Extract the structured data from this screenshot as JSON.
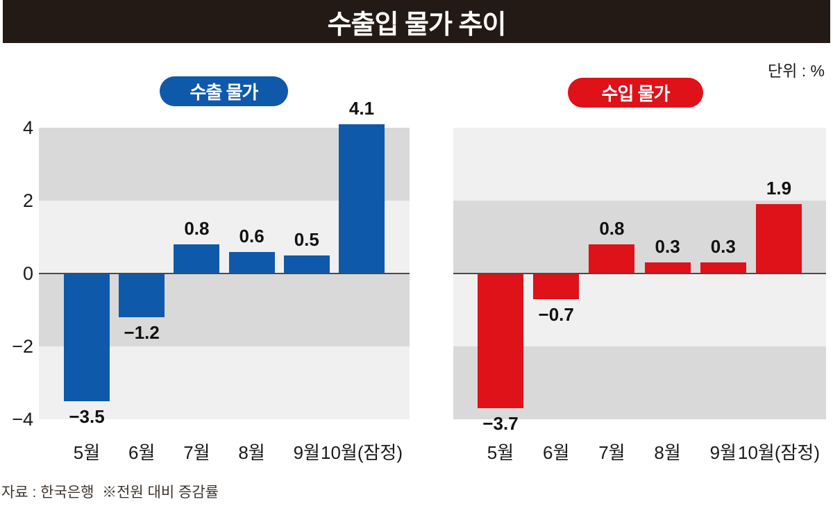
{
  "header": {
    "title": "수출입 물가 추이",
    "unit_label": "단위 : %"
  },
  "footer": {
    "source": "자료 : 한국은행  ※전원 대비 증감률"
  },
  "colors": {
    "title_bar_bg": "#241a15",
    "export_accent": "#0f59aa",
    "import_accent": "#df1119",
    "band_dark": "#d9d9d9",
    "band_light": "#f0f0f0",
    "zero_line": "#4a4a4a",
    "label_text": "#111111"
  },
  "chart_data": [
    {
      "type": "bar",
      "title": "수출 물가",
      "categories": [
        "5월",
        "6월",
        "7월",
        "8월",
        "9월",
        "10월(잠정)"
      ],
      "values": [
        -3.5,
        -1.2,
        0.8,
        0.6,
        0.5,
        4.1
      ],
      "bar_color": "#0f59aa",
      "ylim": [
        -4,
        4
      ],
      "yticks": [
        4,
        2,
        0,
        -2,
        -4
      ],
      "show_ytick_labels": true,
      "band_pattern": [
        "dark",
        "light",
        "dark",
        "light"
      ],
      "legend_position": "top-center",
      "grid": "horizontal-bands"
    },
    {
      "type": "bar",
      "title": "수입 물가",
      "categories": [
        "5월",
        "6월",
        "7월",
        "8월",
        "9월",
        "10월(잠정)"
      ],
      "values": [
        -3.7,
        -0.7,
        0.8,
        0.3,
        0.3,
        1.9
      ],
      "bar_color": "#df1119",
      "ylim": [
        -4,
        4
      ],
      "yticks": [
        4,
        2,
        0,
        -2,
        -4
      ],
      "show_ytick_labels": false,
      "band_pattern": [
        "light",
        "dark",
        "light",
        "dark"
      ],
      "legend_position": "top-center",
      "grid": "horizontal-bands"
    }
  ]
}
